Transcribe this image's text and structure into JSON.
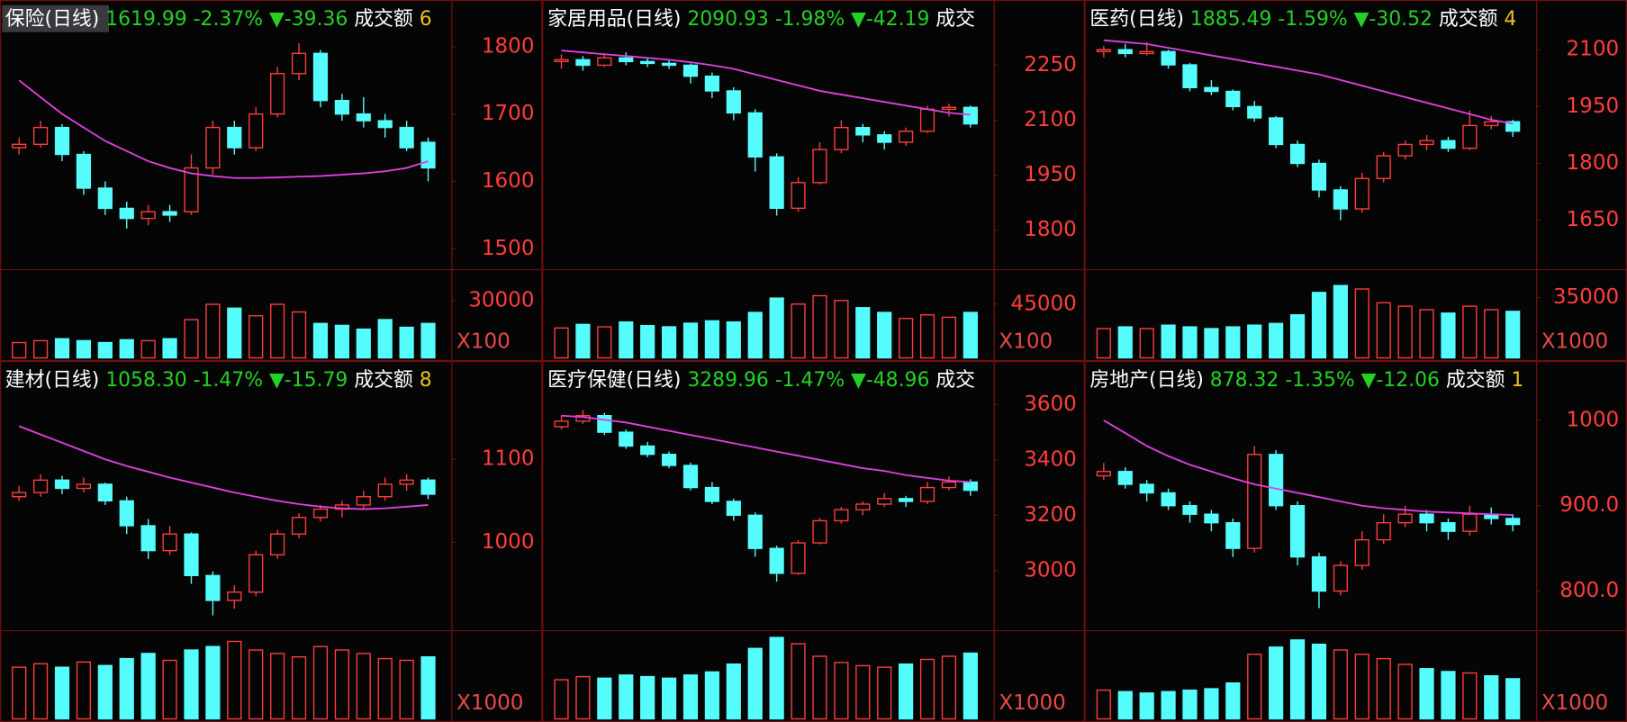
{
  "chart_data": [
    {
      "type": "candlestick",
      "name": "保险(日线)",
      "price": "1619.99",
      "pct": "-2.37%",
      "change": "▼-39.36",
      "amount_label": "成交额",
      "amount": "6",
      "up_color": "#ff3c3c",
      "down_color": "#54fcfc",
      "ylim": [
        1472,
        1823
      ],
      "yticks": [
        1500,
        1600,
        1700,
        1800
      ],
      "candles": [
        [
          1650,
          1665,
          1640,
          1655
        ],
        [
          1655,
          1690,
          1650,
          1680
        ],
        [
          1680,
          1685,
          1630,
          1640
        ],
        [
          1640,
          1645,
          1580,
          1590
        ],
        [
          1590,
          1600,
          1550,
          1560
        ],
        [
          1560,
          1570,
          1530,
          1545
        ],
        [
          1545,
          1565,
          1535,
          1555
        ],
        [
          1555,
          1565,
          1540,
          1550
        ],
        [
          1555,
          1640,
          1550,
          1620
        ],
        [
          1620,
          1690,
          1610,
          1680
        ],
        [
          1680,
          1690,
          1640,
          1650
        ],
        [
          1650,
          1710,
          1645,
          1700
        ],
        [
          1700,
          1770,
          1695,
          1760
        ],
        [
          1760,
          1805,
          1750,
          1790
        ],
        [
          1790,
          1795,
          1710,
          1720
        ],
        [
          1720,
          1730,
          1690,
          1700
        ],
        [
          1700,
          1725,
          1680,
          1690
        ],
        [
          1690,
          1700,
          1665,
          1680
        ],
        [
          1680,
          1690,
          1645,
          1650
        ],
        [
          1658,
          1665,
          1600,
          1620
        ]
      ],
      "ma": {
        "color": "#e040e0",
        "values": [
          1750,
          1725,
          1700,
          1680,
          1660,
          1645,
          1630,
          1620,
          1612,
          1608,
          1605,
          1605,
          1606,
          1607,
          1608,
          1610,
          1612,
          1615,
          1620,
          1630
        ]
      },
      "volume": {
        "unit": "X100",
        "ylim": [
          0,
          45000
        ],
        "yticks": [
          30000
        ],
        "values": [
          8000,
          9000,
          10000,
          9000,
          8000,
          9500,
          9000,
          10000,
          20000,
          28000,
          26000,
          22000,
          28000,
          24000,
          18000,
          17000,
          15000,
          20000,
          16000,
          18000
        ]
      }
    },
    {
      "type": "candlestick",
      "name": "家居用品(日线)",
      "price": "2090.93",
      "pct": "-1.98%",
      "change": "▼-42.19",
      "amount_label": "成交",
      "up_color": "#ff3c3c",
      "down_color": "#54fcfc",
      "ylim": [
        1698,
        2343
      ],
      "yticks": [
        1800,
        1950,
        2100,
        2250
      ],
      "candles": [
        [
          2260,
          2280,
          2240,
          2265
        ],
        [
          2265,
          2275,
          2235,
          2250
        ],
        [
          2250,
          2280,
          2245,
          2270
        ],
        [
          2270,
          2285,
          2250,
          2260
        ],
        [
          2260,
          2270,
          2245,
          2255
        ],
        [
          2255,
          2265,
          2240,
          2250
        ],
        [
          2250,
          2255,
          2200,
          2220
        ],
        [
          2220,
          2230,
          2160,
          2180
        ],
        [
          2180,
          2190,
          2100,
          2120
        ],
        [
          2120,
          2130,
          1960,
          2000
        ],
        [
          2000,
          2010,
          1840,
          1860
        ],
        [
          1860,
          1945,
          1850,
          1930
        ],
        [
          1930,
          2040,
          1925,
          2020
        ],
        [
          2020,
          2100,
          2010,
          2080
        ],
        [
          2080,
          2090,
          2040,
          2060
        ],
        [
          2060,
          2070,
          2020,
          2040
        ],
        [
          2040,
          2080,
          2030,
          2070
        ],
        [
          2070,
          2140,
          2065,
          2130
        ],
        [
          2130,
          2145,
          2110,
          2135
        ],
        [
          2135,
          2140,
          2080,
          2090
        ]
      ],
      "ma": {
        "color": "#e040e0",
        "values": [
          2290,
          2285,
          2280,
          2275,
          2270,
          2265,
          2258,
          2250,
          2240,
          2225,
          2210,
          2195,
          2180,
          2170,
          2160,
          2150,
          2140,
          2130,
          2120,
          2115
        ]
      },
      "volume": {
        "unit": "X100",
        "ylim": [
          0,
          72000
        ],
        "yticks": [
          45000
        ],
        "values": [
          25000,
          28000,
          26000,
          30000,
          27000,
          26000,
          29000,
          31000,
          30000,
          38000,
          50000,
          45000,
          52000,
          48000,
          42000,
          38000,
          33000,
          36000,
          34000,
          38000
        ]
      }
    },
    {
      "type": "candlestick",
      "name": "医药(日线)",
      "price": "1885.49",
      "pct": "-1.59%",
      "change": "▼-30.52",
      "amount_label": "成交额",
      "amount": "4",
      "up_color": "#ff3c3c",
      "down_color": "#54fcfc",
      "ylim": [
        1525,
        2149
      ],
      "yticks": [
        1650,
        1800,
        1950,
        2100
      ],
      "candles": [
        [
          2095,
          2110,
          2080,
          2100
        ],
        [
          2100,
          2115,
          2080,
          2090
        ],
        [
          2090,
          2120,
          2085,
          2095
        ],
        [
          2095,
          2100,
          2050,
          2060
        ],
        [
          2060,
          2065,
          1990,
          2000
        ],
        [
          2000,
          2020,
          1980,
          1990
        ],
        [
          1990,
          1995,
          1940,
          1950
        ],
        [
          1950,
          1965,
          1910,
          1920
        ],
        [
          1920,
          1925,
          1840,
          1850
        ],
        [
          1850,
          1860,
          1790,
          1800
        ],
        [
          1800,
          1810,
          1710,
          1730
        ],
        [
          1730,
          1740,
          1650,
          1680
        ],
        [
          1680,
          1775,
          1670,
          1760
        ],
        [
          1760,
          1830,
          1750,
          1820
        ],
        [
          1820,
          1860,
          1810,
          1850
        ],
        [
          1850,
          1875,
          1835,
          1860
        ],
        [
          1860,
          1870,
          1830,
          1840
        ],
        [
          1840,
          1940,
          1835,
          1900
        ],
        [
          1900,
          1925,
          1890,
          1910
        ],
        [
          1910,
          1915,
          1870,
          1885
        ]
      ],
      "ma": {
        "color": "#e040e0",
        "values": [
          2125,
          2120,
          2115,
          2105,
          2095,
          2085,
          2075,
          2065,
          2055,
          2045,
          2035,
          2020,
          2005,
          1990,
          1975,
          1960,
          1945,
          1930,
          1915,
          1905
        ]
      },
      "volume": {
        "unit": "X1000",
        "ylim": [
          0,
          50000
        ],
        "yticks": [
          35000
        ],
        "values": [
          17000,
          18000,
          17000,
          19000,
          18000,
          17000,
          18000,
          19000,
          20000,
          25000,
          38000,
          42000,
          40000,
          32000,
          30000,
          28000,
          26000,
          30000,
          28000,
          27000
        ]
      }
    },
    {
      "type": "candlestick",
      "name": "建材(日线)",
      "price": "1058.30",
      "pct": "-1.47%",
      "change": "▼-15.79",
      "amount_label": "成交额",
      "amount": "8",
      "up_color": "#ff3c3c",
      "down_color": "#54fcfc",
      "ylim": [
        896,
        1181
      ],
      "yticks": [
        1000,
        1100
      ],
      "candles": [
        [
          1055,
          1068,
          1050,
          1060
        ],
        [
          1060,
          1082,
          1055,
          1075
        ],
        [
          1075,
          1080,
          1058,
          1065
        ],
        [
          1065,
          1078,
          1060,
          1070
        ],
        [
          1070,
          1072,
          1045,
          1050
        ],
        [
          1050,
          1055,
          1010,
          1020
        ],
        [
          1020,
          1028,
          980,
          990
        ],
        [
          990,
          1020,
          985,
          1010
        ],
        [
          1010,
          1012,
          950,
          960
        ],
        [
          960,
          965,
          912,
          930
        ],
        [
          930,
          948,
          920,
          940
        ],
        [
          940,
          990,
          935,
          985
        ],
        [
          985,
          1015,
          980,
          1010
        ],
        [
          1010,
          1035,
          1005,
          1030
        ],
        [
          1030,
          1045,
          1025,
          1040
        ],
        [
          1040,
          1050,
          1030,
          1045
        ],
        [
          1045,
          1062,
          1040,
          1055
        ],
        [
          1055,
          1078,
          1050,
          1070
        ],
        [
          1070,
          1082,
          1062,
          1075
        ],
        [
          1075,
          1078,
          1052,
          1058
        ]
      ],
      "ma": {
        "color": "#e040e0",
        "values": [
          1140,
          1130,
          1120,
          1110,
          1100,
          1092,
          1085,
          1078,
          1072,
          1066,
          1060,
          1055,
          1050,
          1046,
          1043,
          1041,
          1040,
          1041,
          1043,
          1045
        ]
      },
      "volume": {
        "unit": "X1000",
        "ylim": [
          0,
          50000
        ],
        "yticks": [],
        "values": [
          30000,
          32000,
          30000,
          33000,
          31000,
          35000,
          38000,
          34000,
          40000,
          42000,
          45000,
          40000,
          38000,
          36000,
          42000,
          40000,
          38000,
          35000,
          34000,
          36000
        ]
      }
    },
    {
      "type": "candlestick",
      "name": "医疗保健(日线)",
      "price": "3289.96",
      "pct": "-1.47%",
      "change": "▼-48.96",
      "amount_label": "成交",
      "up_color": "#ff3c3c",
      "down_color": "#54fcfc",
      "ylim": [
        2790,
        3645
      ],
      "yticks": [
        3000,
        3200,
        3400,
        3600
      ],
      "candles": [
        [
          3520,
          3560,
          3510,
          3540
        ],
        [
          3540,
          3580,
          3530,
          3560
        ],
        [
          3560,
          3570,
          3490,
          3500
        ],
        [
          3500,
          3510,
          3440,
          3450
        ],
        [
          3450,
          3465,
          3410,
          3420
        ],
        [
          3420,
          3430,
          3370,
          3380
        ],
        [
          3380,
          3390,
          3290,
          3300
        ],
        [
          3300,
          3320,
          3240,
          3250
        ],
        [
          3250,
          3260,
          3180,
          3200
        ],
        [
          3200,
          3210,
          3050,
          3080
        ],
        [
          3080,
          3090,
          2960,
          2990
        ],
        [
          2990,
          3110,
          2985,
          3100
        ],
        [
          3100,
          3190,
          3095,
          3180
        ],
        [
          3180,
          3230,
          3170,
          3220
        ],
        [
          3220,
          3250,
          3200,
          3240
        ],
        [
          3240,
          3280,
          3230,
          3260
        ],
        [
          3260,
          3270,
          3230,
          3250
        ],
        [
          3250,
          3320,
          3240,
          3300
        ],
        [
          3300,
          3340,
          3290,
          3320
        ],
        [
          3320,
          3330,
          3270,
          3290
        ]
      ],
      "ma": {
        "color": "#e040e0",
        "values": [
          3560,
          3555,
          3545,
          3535,
          3520,
          3505,
          3490,
          3475,
          3460,
          3445,
          3430,
          3415,
          3400,
          3385,
          3370,
          3360,
          3345,
          3335,
          3325,
          3320
        ]
      },
      "volume": {
        "unit": "X1000",
        "ylim": [
          0,
          55000
        ],
        "yticks": [],
        "values": [
          25000,
          27000,
          26000,
          28000,
          27000,
          26000,
          28000,
          30000,
          35000,
          45000,
          52000,
          48000,
          40000,
          36000,
          34000,
          33000,
          35000,
          38000,
          40000,
          42000
        ]
      }
    },
    {
      "type": "candlestick",
      "name": "房地产(日线)",
      "price": "878.32",
      "pct": "-1.35%",
      "change": "▼-12.06",
      "amount_label": "成交额",
      "amount": "1",
      "up_color": "#ff3c3c",
      "down_color": "#54fcfc",
      "ylim": [
        756,
        1033
      ],
      "yticks": [
        {
          "value": 800,
          "label": "800.0"
        },
        {
          "value": 900,
          "label": "900.0"
        },
        1000
      ],
      "candles": [
        [
          935,
          950,
          930,
          940
        ],
        [
          940,
          945,
          920,
          925
        ],
        [
          925,
          930,
          905,
          915
        ],
        [
          915,
          920,
          895,
          900
        ],
        [
          900,
          905,
          880,
          890
        ],
        [
          890,
          895,
          870,
          880
        ],
        [
          880,
          885,
          840,
          850
        ],
        [
          850,
          970,
          845,
          960
        ],
        [
          960,
          965,
          895,
          900
        ],
        [
          900,
          905,
          830,
          840
        ],
        [
          840,
          845,
          780,
          800
        ],
        [
          800,
          835,
          795,
          830
        ],
        [
          830,
          870,
          825,
          860
        ],
        [
          860,
          890,
          855,
          880
        ],
        [
          880,
          900,
          875,
          890
        ],
        [
          890,
          895,
          870,
          880
        ],
        [
          880,
          885,
          860,
          870
        ],
        [
          870,
          900,
          865,
          890
        ],
        [
          890,
          898,
          878,
          885
        ],
        [
          885,
          890,
          870,
          878
        ]
      ],
      "ma": {
        "color": "#e040e0",
        "values": [
          1000,
          985,
          970,
          958,
          948,
          940,
          932,
          925,
          920,
          915,
          910,
          905,
          900,
          897,
          895,
          893,
          892,
          891,
          890,
          889
        ]
      },
      "volume": {
        "unit": "X1000",
        "ylim": [
          0,
          60000
        ],
        "yticks": [],
        "values": [
          20000,
          19000,
          18000,
          19000,
          20000,
          21000,
          25000,
          45000,
          50000,
          55000,
          52000,
          48000,
          45000,
          42000,
          38000,
          35000,
          33000,
          32000,
          30000,
          28000
        ]
      }
    }
  ]
}
